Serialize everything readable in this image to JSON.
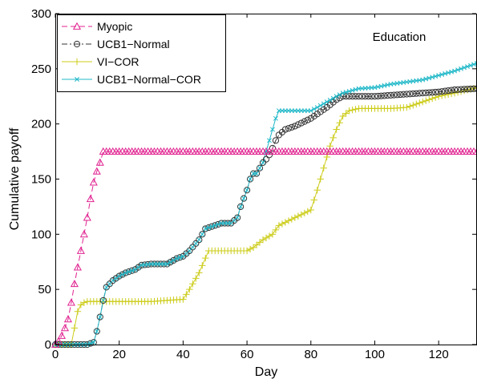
{
  "chart_data": {
    "type": "line",
    "annotation": "Education",
    "xlabel": "Day",
    "ylabel": "Cumulative payoff",
    "xlim": [
      0,
      132
    ],
    "ylim": [
      0,
      300
    ],
    "xticks": [
      0,
      20,
      40,
      60,
      80,
      100,
      120
    ],
    "yticks": [
      0,
      50,
      100,
      150,
      200,
      250,
      300
    ],
    "legend_position": "top-left",
    "grid": false,
    "series": [
      {
        "name": "Myopic",
        "color": "#e0208f",
        "dash": "dashed",
        "marker": "triangle",
        "x": [
          0,
          1,
          2,
          3,
          4,
          5,
          6,
          7,
          8,
          9,
          10,
          11,
          12,
          13,
          14,
          15,
          16,
          17,
          18,
          19,
          20,
          22,
          25,
          30,
          40,
          50,
          60,
          70,
          80,
          90,
          100,
          110,
          120,
          132
        ],
        "y": [
          0,
          3,
          8,
          15,
          23,
          38,
          55,
          70,
          85,
          100,
          115,
          132,
          147,
          157,
          165,
          175,
          175,
          175,
          175,
          175,
          175,
          175,
          175,
          175,
          175,
          175,
          175,
          175,
          175,
          175,
          175,
          175,
          175,
          175
        ]
      },
      {
        "name": "UCB1−Normal",
        "color": "#333333",
        "dash": "dashdot",
        "marker": "circle",
        "x": [
          0,
          5,
          10,
          12,
          13,
          14,
          15,
          16,
          17,
          18,
          20,
          22,
          25,
          27,
          30,
          35,
          38,
          40,
          42,
          45,
          47,
          50,
          52,
          55,
          57,
          58,
          60,
          61,
          62,
          63,
          64,
          65,
          66,
          67,
          68,
          69,
          70,
          72,
          75,
          80,
          85,
          88,
          90,
          95,
          100,
          105,
          110,
          115,
          120,
          125,
          132
        ],
        "y": [
          0,
          0,
          0,
          2,
          12,
          25,
          40,
          52,
          55,
          58,
          62,
          65,
          68,
          72,
          73,
          73,
          78,
          80,
          85,
          95,
          105,
          108,
          110,
          110,
          115,
          125,
          140,
          150,
          155,
          155,
          160,
          165,
          168,
          172,
          178,
          185,
          190,
          195,
          198,
          205,
          215,
          222,
          225,
          225,
          225,
          226,
          227,
          228,
          229,
          231,
          232
        ]
      },
      {
        "name": "VI−COR",
        "color": "#cccc1a",
        "dash": "solid",
        "marker": "plus",
        "x": [
          0,
          5,
          7,
          8,
          9,
          10,
          15,
          20,
          25,
          30,
          35,
          40,
          42,
          45,
          48,
          50,
          55,
          60,
          62,
          65,
          68,
          70,
          75,
          80,
          82,
          84,
          86,
          88,
          90,
          92,
          95,
          100,
          105,
          110,
          115,
          120,
          125,
          132
        ],
        "y": [
          0,
          0,
          30,
          36,
          38,
          39,
          39,
          39,
          39,
          39,
          40,
          41,
          50,
          65,
          85,
          85,
          85,
          85,
          88,
          95,
          100,
          108,
          115,
          122,
          140,
          160,
          180,
          195,
          207,
          212,
          214,
          214,
          214,
          215,
          220,
          225,
          228,
          233
        ]
      },
      {
        "name": "UCB1−Normal−COR",
        "color": "#20b8c8",
        "dash": "solid",
        "marker": "x",
        "x": [
          0,
          5,
          10,
          12,
          13,
          14,
          15,
          16,
          17,
          18,
          20,
          22,
          25,
          27,
          30,
          35,
          38,
          40,
          42,
          45,
          47,
          50,
          52,
          55,
          57,
          58,
          60,
          61,
          62,
          63,
          64,
          65,
          66,
          67,
          68,
          69,
          70,
          75,
          80,
          82,
          85,
          88,
          90,
          95,
          100,
          105,
          110,
          115,
          120,
          125,
          130,
          132
        ],
        "y": [
          0,
          0,
          0,
          2,
          12,
          25,
          40,
          52,
          55,
          58,
          62,
          65,
          68,
          72,
          73,
          73,
          78,
          80,
          85,
          95,
          105,
          108,
          110,
          110,
          115,
          125,
          140,
          150,
          155,
          155,
          160,
          165,
          175,
          185,
          195,
          205,
          212,
          212,
          212,
          215,
          220,
          225,
          228,
          232,
          233,
          236,
          238,
          240,
          244,
          248,
          253,
          255
        ]
      }
    ]
  }
}
